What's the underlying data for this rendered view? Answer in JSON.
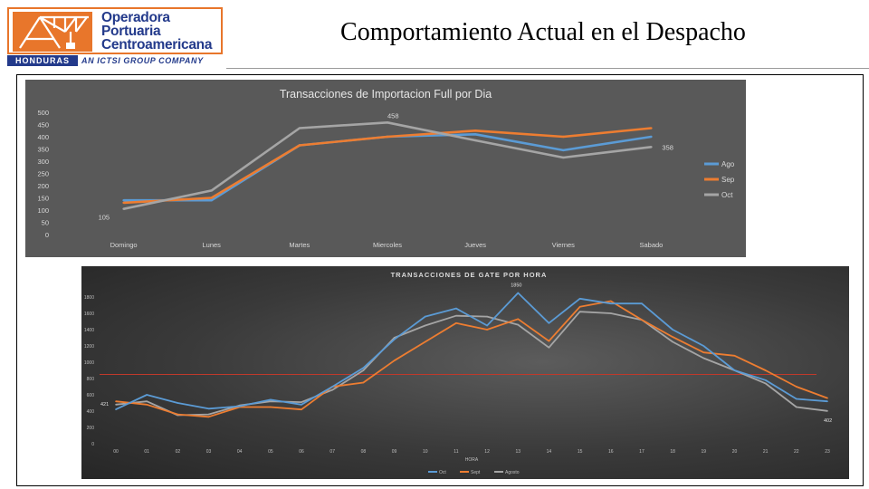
{
  "header": {
    "title": "Comportamiento Actual en el Despacho",
    "logo": {
      "line1": "Operadora",
      "line2": "Portuaria",
      "line3": "Centroamericana",
      "country": "HONDURAS",
      "tagline": "AN ICTSI GROUP COMPANY",
      "icon": "crane-icon",
      "colors": {
        "brand_orange": "#e8762b",
        "brand_blue": "#233a8b"
      }
    }
  },
  "chart_data": [
    {
      "type": "line",
      "title": "Transacciones de Importacion Full por Dia",
      "categories": [
        "Domingo",
        "Lunes",
        "Martes",
        "Miercoles",
        "Jueves",
        "Viernes",
        "Sabado"
      ],
      "series": [
        {
          "name": "Ago",
          "color": "#5b9bd5",
          "values": [
            140,
            140,
            365,
            400,
            410,
            345,
            400
          ]
        },
        {
          "name": "Sep",
          "color": "#ed7d31",
          "values": [
            130,
            150,
            365,
            400,
            425,
            400,
            435
          ]
        },
        {
          "name": "Oct",
          "color": "#a5a5a5",
          "values": [
            105,
            180,
            435,
            458,
            385,
            315,
            358
          ]
        }
      ],
      "data_labels": [
        {
          "series": "Oct",
          "index": 0,
          "text": "105"
        },
        {
          "series": "Oct",
          "index": 3,
          "text": "458"
        },
        {
          "series": "Oct",
          "index": 6,
          "text": "358"
        }
      ],
      "ylim": [
        0,
        500
      ],
      "yticks": [
        0,
        50,
        100,
        150,
        200,
        250,
        300,
        350,
        400,
        450,
        500
      ],
      "legend": "right",
      "background": "#595959"
    },
    {
      "type": "line",
      "title": "TRANSACCIONES DE GATE POR HORA",
      "xlabel": "HORA",
      "categories": [
        "00",
        "01",
        "02",
        "03",
        "04",
        "05",
        "06",
        "07",
        "08",
        "09",
        "10",
        "11",
        "12",
        "13",
        "14",
        "15",
        "16",
        "17",
        "18",
        "19",
        "20",
        "21",
        "22",
        "23"
      ],
      "series": [
        {
          "name": "Oct",
          "color": "#5b9bd5",
          "values": [
            421,
            600,
            500,
            430,
            460,
            540,
            480,
            700,
            930,
            1280,
            1560,
            1660,
            1450,
            1850,
            1480,
            1780,
            1720,
            1720,
            1400,
            1200,
            900,
            780,
            550,
            520
          ]
        },
        {
          "name": "Sept",
          "color": "#ed7d31",
          "values": [
            520,
            480,
            360,
            330,
            450,
            450,
            420,
            700,
            750,
            1020,
            1250,
            1480,
            1400,
            1530,
            1260,
            1680,
            1750,
            1520,
            1310,
            1120,
            1080,
            900,
            700,
            560
          ]
        },
        {
          "name": "Agosto",
          "color": "#a5a5a5",
          "values": [
            480,
            520,
            350,
            360,
            470,
            520,
            510,
            660,
            900,
            1300,
            1450,
            1570,
            1560,
            1460,
            1180,
            1620,
            1600,
            1520,
            1250,
            1050,
            900,
            740,
            450,
            402
          ]
        }
      ],
      "reference_line": {
        "value": 850,
        "color": "#c0392b"
      },
      "data_labels": [
        {
          "series": "Oct",
          "index": 0,
          "text": "421"
        },
        {
          "series": "Oct",
          "index": 13,
          "text": "1850"
        },
        {
          "series": "Agosto",
          "index": 23,
          "text": "402"
        }
      ],
      "ylim": [
        0,
        2000
      ],
      "yticks": [
        0,
        200,
        400,
        600,
        800,
        1000,
        1200,
        1400,
        1600,
        1800
      ],
      "legend": "bottom"
    }
  ]
}
